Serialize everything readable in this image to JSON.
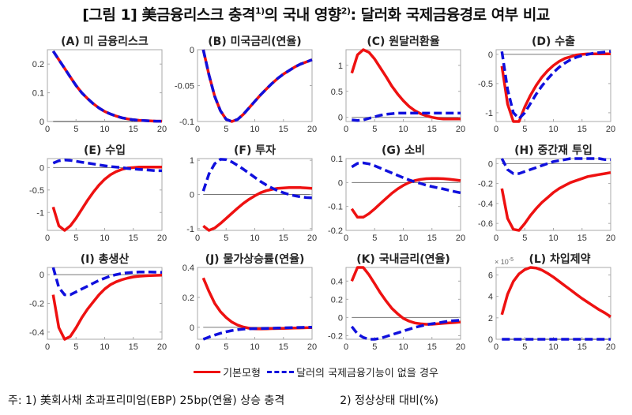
{
  "title": {
    "main": "[그림 1] 美금융리스크 충격",
    "sup1": "1)",
    "mid": "의 국내 영향",
    "sup2": "2)",
    "rest": ": 달러화 국제금융경로 여부 비교"
  },
  "legend": {
    "series1": "기본모형",
    "series2": "달러의 국제금융기능이 없을 경우"
  },
  "note": {
    "prefix": "주: 1) 美회사채 초과프리미엄(EBP) 25bp(연율) 상승 충격",
    "second": "2) 정상상태 대비(%)"
  },
  "colors": {
    "base": "#ee1111",
    "nodollar": "#1010dd",
    "zero": "#777777",
    "axis": "#aaaaaa"
  },
  "chart_data": [
    {
      "type": "line",
      "title": "(A) 미 금융리스크",
      "xlim": [
        0,
        20
      ],
      "ylim": [
        0,
        0.25
      ],
      "xticks": [
        0,
        5,
        10,
        15,
        20
      ],
      "yticks": [
        0,
        0.1,
        0.2
      ],
      "ytick_labels": [
        "0",
        "0.1",
        "0.2"
      ],
      "x": [
        1,
        2,
        3,
        4,
        5,
        6,
        7,
        8,
        9,
        10,
        11,
        12,
        13,
        14,
        15,
        16,
        17,
        18,
        19,
        20
      ],
      "series": [
        {
          "name": "기본모형",
          "values": [
            0.245,
            0.215,
            0.185,
            0.155,
            0.125,
            0.1,
            0.08,
            0.062,
            0.047,
            0.035,
            0.026,
            0.019,
            0.013,
            0.009,
            0.006,
            0.004,
            0.003,
            0.002,
            0.001,
            0.001
          ]
        },
        {
          "name": "달러의 국제금융기능이 없을 경우",
          "values": [
            0.245,
            0.215,
            0.185,
            0.155,
            0.125,
            0.1,
            0.08,
            0.062,
            0.047,
            0.035,
            0.026,
            0.019,
            0.013,
            0.009,
            0.006,
            0.004,
            0.003,
            0.002,
            0.001,
            0.001
          ]
        }
      ]
    },
    {
      "type": "line",
      "title": "(B) 미국금리(연율)",
      "xlim": [
        0,
        20
      ],
      "ylim": [
        -0.1,
        0
      ],
      "xticks": [
        0,
        5,
        10,
        15,
        20
      ],
      "yticks": [
        -0.1,
        -0.05,
        0
      ],
      "ytick_labels": [
        "-0.1",
        "-0.05",
        "0"
      ],
      "x": [
        1,
        2,
        3,
        4,
        5,
        6,
        7,
        8,
        9,
        10,
        11,
        12,
        13,
        14,
        15,
        16,
        17,
        18,
        19,
        20
      ],
      "series": [
        {
          "name": "기본모형",
          "values": [
            0.0,
            -0.035,
            -0.065,
            -0.085,
            -0.097,
            -0.1,
            -0.097,
            -0.09,
            -0.081,
            -0.072,
            -0.063,
            -0.055,
            -0.047,
            -0.04,
            -0.034,
            -0.029,
            -0.024,
            -0.02,
            -0.017,
            -0.014
          ]
        },
        {
          "name": "달러의 국제금융기능이 없을 경우",
          "values": [
            0.0,
            -0.035,
            -0.065,
            -0.085,
            -0.097,
            -0.1,
            -0.097,
            -0.09,
            -0.081,
            -0.072,
            -0.063,
            -0.055,
            -0.047,
            -0.04,
            -0.034,
            -0.029,
            -0.024,
            -0.02,
            -0.017,
            -0.014
          ]
        }
      ]
    },
    {
      "type": "line",
      "title": "(C) 원달러환율",
      "xlim": [
        0,
        20
      ],
      "ylim": [
        -0.08,
        1.3
      ],
      "xticks": [
        0,
        5,
        10,
        15,
        20
      ],
      "yticks": [
        0,
        0.5,
        1
      ],
      "ytick_labels": [
        "0",
        "0.5",
        "1"
      ],
      "x": [
        1,
        2,
        3,
        4,
        5,
        6,
        7,
        8,
        9,
        10,
        11,
        12,
        13,
        14,
        15,
        16,
        17,
        18,
        19,
        20
      ],
      "series": [
        {
          "name": "기본모형",
          "values": [
            0.85,
            1.2,
            1.3,
            1.25,
            1.12,
            0.95,
            0.78,
            0.6,
            0.45,
            0.32,
            0.21,
            0.13,
            0.07,
            0.03,
            0.0,
            -0.02,
            -0.03,
            -0.03,
            -0.03,
            -0.03
          ]
        },
        {
          "name": "달러의 국제금융기능이 없을 경우",
          "values": [
            -0.05,
            -0.06,
            -0.05,
            -0.02,
            0.01,
            0.04,
            0.06,
            0.07,
            0.08,
            0.08,
            0.08,
            0.08,
            0.08,
            0.08,
            0.08,
            0.08,
            0.08,
            0.08,
            0.08,
            0.08
          ]
        }
      ]
    },
    {
      "type": "line",
      "title": "(D) 수출",
      "xlim": [
        0,
        20
      ],
      "ylim": [
        -1.15,
        0.08
      ],
      "xticks": [
        0,
        5,
        10,
        15,
        20
      ],
      "yticks": [
        -1,
        -0.5,
        0
      ],
      "ytick_labels": [
        "-1",
        "-0.5",
        "0"
      ],
      "x": [
        1,
        2,
        3,
        4,
        5,
        6,
        7,
        8,
        9,
        10,
        11,
        12,
        13,
        14,
        15,
        16,
        17,
        18,
        19,
        20
      ],
      "series": [
        {
          "name": "기본모형",
          "values": [
            -0.2,
            -0.85,
            -1.15,
            -1.15,
            -0.9,
            -0.7,
            -0.53,
            -0.39,
            -0.28,
            -0.19,
            -0.12,
            -0.07,
            -0.04,
            -0.01,
            0.0,
            0.01,
            0.01,
            0.01,
            0.01,
            0.01
          ]
        },
        {
          "name": "달러의 국제금융기능이 없을 경우",
          "values": [
            0.05,
            -0.6,
            -1.0,
            -1.1,
            -1.0,
            -0.84,
            -0.68,
            -0.54,
            -0.42,
            -0.31,
            -0.22,
            -0.15,
            -0.09,
            -0.05,
            -0.02,
            0.0,
            0.02,
            0.03,
            0.04,
            0.05
          ]
        }
      ]
    },
    {
      "type": "line",
      "title": "(E) 수입",
      "xlim": [
        0,
        20
      ],
      "ylim": [
        -1.4,
        0.2
      ],
      "xticks": [
        0,
        5,
        10,
        15,
        20
      ],
      "yticks": [
        -1,
        -0.5,
        0
      ],
      "ytick_labels": [
        "-1",
        "-0.5",
        "0"
      ],
      "x": [
        1,
        2,
        3,
        4,
        5,
        6,
        7,
        8,
        9,
        10,
        11,
        12,
        13,
        14,
        15,
        16,
        17,
        18,
        19,
        20
      ],
      "series": [
        {
          "name": "기본모형",
          "values": [
            -0.88,
            -1.3,
            -1.4,
            -1.3,
            -1.13,
            -0.93,
            -0.73,
            -0.55,
            -0.39,
            -0.26,
            -0.16,
            -0.09,
            -0.04,
            -0.01,
            0.0,
            0.01,
            0.01,
            0.01,
            0.01,
            0.01
          ]
        },
        {
          "name": "달러의 국제금융기능이 없을 경우",
          "values": [
            0.1,
            0.15,
            0.17,
            0.16,
            0.14,
            0.12,
            0.1,
            0.08,
            0.06,
            0.04,
            0.02,
            0.01,
            0.0,
            -0.02,
            -0.03,
            -0.04,
            -0.05,
            -0.06,
            -0.07,
            -0.07
          ]
        }
      ]
    },
    {
      "type": "line",
      "title": "(F) 투자",
      "xlim": [
        0,
        20
      ],
      "ylim": [
        -1.05,
        1.05
      ],
      "xticks": [
        0,
        5,
        10,
        15,
        20
      ],
      "yticks": [
        -1,
        0,
        1
      ],
      "ytick_labels": [
        "-1",
        "0",
        "1"
      ],
      "x": [
        1,
        2,
        3,
        4,
        5,
        6,
        7,
        8,
        9,
        10,
        11,
        12,
        13,
        14,
        15,
        16,
        17,
        18,
        19,
        20
      ],
      "series": [
        {
          "name": "기본모형",
          "values": [
            -0.92,
            -1.05,
            -0.98,
            -0.85,
            -0.7,
            -0.55,
            -0.4,
            -0.26,
            -0.14,
            -0.04,
            0.05,
            0.11,
            0.15,
            0.18,
            0.19,
            0.2,
            0.2,
            0.2,
            0.19,
            0.18
          ]
        },
        {
          "name": "달러의 국제금융기능이 없을 경우",
          "values": [
            0.1,
            0.6,
            0.9,
            1.03,
            1.02,
            0.95,
            0.85,
            0.74,
            0.62,
            0.5,
            0.38,
            0.28,
            0.19,
            0.11,
            0.05,
            0.0,
            -0.04,
            -0.07,
            -0.09,
            -0.1
          ]
        }
      ]
    },
    {
      "type": "line",
      "title": "(G) 소비",
      "xlim": [
        0,
        20
      ],
      "ylim": [
        -0.2,
        0.1
      ],
      "xticks": [
        0,
        5,
        10,
        15,
        20
      ],
      "yticks": [
        -0.2,
        -0.1,
        0,
        0.1
      ],
      "ytick_labels": [
        "-0.2",
        "-0.1",
        "0",
        "0.1"
      ],
      "x": [
        1,
        2,
        3,
        4,
        5,
        6,
        7,
        8,
        9,
        10,
        11,
        12,
        13,
        14,
        15,
        16,
        17,
        18,
        19,
        20
      ],
      "series": [
        {
          "name": "기본모형",
          "values": [
            -0.11,
            -0.145,
            -0.145,
            -0.13,
            -0.11,
            -0.088,
            -0.066,
            -0.045,
            -0.027,
            -0.012,
            0.0,
            0.008,
            0.013,
            0.016,
            0.017,
            0.017,
            0.016,
            0.014,
            0.011,
            0.008
          ]
        },
        {
          "name": "달러의 국제금융기능이 없을 경우",
          "values": [
            0.065,
            0.08,
            0.082,
            0.078,
            0.07,
            0.06,
            0.05,
            0.04,
            0.03,
            0.02,
            0.011,
            0.003,
            -0.004,
            -0.011,
            -0.017,
            -0.022,
            -0.027,
            -0.033,
            -0.038,
            -0.043
          ]
        }
      ]
    },
    {
      "type": "line",
      "title": "(H) 중간재 투입",
      "xlim": [
        0,
        20
      ],
      "ylim": [
        -0.67,
        0.05
      ],
      "xticks": [
        0,
        5,
        10,
        15,
        20
      ],
      "yticks": [
        -0.6,
        -0.4,
        -0.2,
        0
      ],
      "ytick_labels": [
        "-0.6",
        "-0.4",
        "-0.2",
        "0"
      ],
      "x": [
        1,
        2,
        3,
        4,
        5,
        6,
        7,
        8,
        9,
        10,
        11,
        12,
        13,
        14,
        15,
        16,
        17,
        18,
        19,
        20
      ],
      "series": [
        {
          "name": "기본모형",
          "values": [
            -0.25,
            -0.55,
            -0.66,
            -0.67,
            -0.6,
            -0.52,
            -0.45,
            -0.39,
            -0.34,
            -0.29,
            -0.25,
            -0.22,
            -0.19,
            -0.17,
            -0.15,
            -0.13,
            -0.12,
            -0.11,
            -0.1,
            -0.09
          ]
        },
        {
          "name": "달러의 국제금융기능이 없을 경우",
          "values": [
            0.05,
            -0.06,
            -0.1,
            -0.1,
            -0.08,
            -0.06,
            -0.04,
            -0.02,
            0.0,
            0.02,
            0.03,
            0.04,
            0.05,
            0.05,
            0.05,
            0.05,
            0.05,
            0.05,
            0.04,
            0.04
          ]
        }
      ]
    },
    {
      "type": "line",
      "title": "(I) 총생산",
      "xlim": [
        0,
        20
      ],
      "ylim": [
        -0.45,
        0.05
      ],
      "xticks": [
        0,
        5,
        10,
        15,
        20
      ],
      "yticks": [
        -0.4,
        -0.2,
        0
      ],
      "ytick_labels": [
        "-0.4",
        "-0.2",
        "0"
      ],
      "x": [
        1,
        2,
        3,
        4,
        5,
        6,
        7,
        8,
        9,
        10,
        11,
        12,
        13,
        14,
        15,
        16,
        17,
        18,
        19,
        20
      ],
      "series": [
        {
          "name": "기본모형",
          "values": [
            -0.14,
            -0.37,
            -0.45,
            -0.43,
            -0.37,
            -0.3,
            -0.24,
            -0.19,
            -0.14,
            -0.1,
            -0.07,
            -0.05,
            -0.035,
            -0.024,
            -0.016,
            -0.011,
            -0.008,
            -0.006,
            -0.005,
            -0.004
          ]
        },
        {
          "name": "달러의 국제금융기능이 없을 경우",
          "values": [
            0.05,
            -0.09,
            -0.14,
            -0.14,
            -0.12,
            -0.1,
            -0.08,
            -0.06,
            -0.04,
            -0.025,
            -0.01,
            0.0,
            0.008,
            0.013,
            0.016,
            0.018,
            0.018,
            0.018,
            0.017,
            0.016
          ]
        }
      ]
    },
    {
      "type": "line",
      "title": "(J) 물가상승률(연율)",
      "xlim": [
        0,
        20
      ],
      "ylim": [
        -0.08,
        0.4
      ],
      "xticks": [
        0,
        5,
        10,
        15,
        20
      ],
      "yticks": [
        0,
        0.2,
        0.4
      ],
      "ytick_labels": [
        "0",
        "0.2",
        "0.4"
      ],
      "x": [
        1,
        2,
        3,
        4,
        5,
        6,
        7,
        8,
        9,
        10,
        11,
        12,
        13,
        14,
        15,
        16,
        17,
        18,
        19,
        20
      ],
      "series": [
        {
          "name": "기본모형",
          "values": [
            0.33,
            0.24,
            0.16,
            0.105,
            0.065,
            0.035,
            0.015,
            0.002,
            -0.006,
            -0.01,
            -0.011,
            -0.01,
            -0.009,
            -0.008,
            -0.007,
            -0.006,
            -0.005,
            -0.004,
            -0.003,
            -0.002
          ]
        },
        {
          "name": "달러의 국제금융기능이 없을 경우",
          "values": [
            -0.08,
            -0.065,
            -0.052,
            -0.04,
            -0.03,
            -0.022,
            -0.016,
            -0.012,
            -0.01,
            -0.009,
            -0.008,
            -0.007,
            -0.006,
            -0.005,
            -0.004,
            -0.003,
            -0.002,
            -0.001,
            0.0,
            0.0
          ]
        }
      ]
    },
    {
      "type": "line",
      "title": "(K) 국내금리(연율)",
      "xlim": [
        0,
        20
      ],
      "ylim": [
        -0.24,
        0.55
      ],
      "xticks": [
        0,
        5,
        10,
        15,
        20
      ],
      "yticks": [
        -0.2,
        0,
        0.2,
        0.4
      ],
      "ytick_labels": [
        "-0.2",
        "0",
        "0.2",
        "0.4"
      ],
      "x": [
        1,
        2,
        3,
        4,
        5,
        6,
        7,
        8,
        9,
        10,
        11,
        12,
        13,
        14,
        15,
        16,
        17,
        18,
        19,
        20
      ],
      "series": [
        {
          "name": "기본모형",
          "values": [
            0.4,
            0.55,
            0.55,
            0.47,
            0.37,
            0.27,
            0.18,
            0.1,
            0.04,
            -0.01,
            -0.04,
            -0.06,
            -0.07,
            -0.075,
            -0.075,
            -0.07,
            -0.065,
            -0.06,
            -0.055,
            -0.05
          ]
        },
        {
          "name": "달러의 국제금융기능이 없을 경우",
          "values": [
            -0.1,
            -0.18,
            -0.22,
            -0.24,
            -0.24,
            -0.23,
            -0.21,
            -0.19,
            -0.17,
            -0.15,
            -0.13,
            -0.11,
            -0.095,
            -0.08,
            -0.07,
            -0.06,
            -0.05,
            -0.04,
            -0.035,
            -0.03
          ]
        }
      ]
    },
    {
      "type": "line",
      "title": "(L) 차입제약",
      "exponent_label": "× 10",
      "exponent": "-5",
      "xlim": [
        0,
        20
      ],
      "ylim": [
        0,
        6.7
      ],
      "xticks": [
        0,
        5,
        10,
        15,
        20
      ],
      "yticks": [
        0,
        2,
        4,
        6
      ],
      "ytick_labels": [
        "0",
        "2",
        "4",
        "6"
      ],
      "x": [
        1,
        2,
        3,
        4,
        5,
        6,
        7,
        8,
        9,
        10,
        11,
        12,
        13,
        14,
        15,
        16,
        17,
        18,
        19,
        20
      ],
      "series": [
        {
          "name": "기본모형",
          "values": [
            2.3,
            4.2,
            5.4,
            6.1,
            6.5,
            6.7,
            6.65,
            6.45,
            6.15,
            5.8,
            5.4,
            5.0,
            4.6,
            4.2,
            3.8,
            3.45,
            3.1,
            2.75,
            2.45,
            2.1
          ]
        },
        {
          "name": "달러의 국제금융기능이 없을 경우",
          "values": [
            0,
            0,
            0,
            0,
            0,
            0,
            0,
            0,
            0,
            0,
            0,
            0,
            0,
            0,
            0,
            0,
            0,
            0,
            0,
            0
          ]
        }
      ]
    }
  ]
}
